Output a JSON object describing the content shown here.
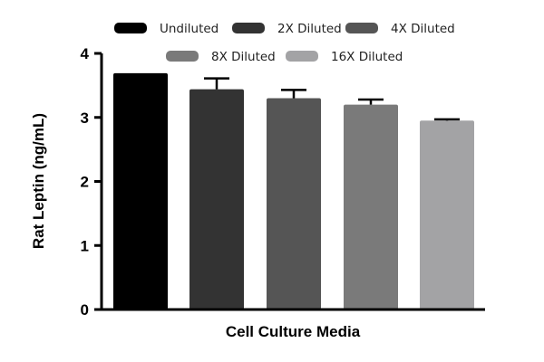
{
  "chart_data": {
    "type": "bar",
    "title": "",
    "xlabel": "Cell Culture Media",
    "ylabel": "Rat  Leptin (ng/mL)",
    "ylim": [
      0,
      4
    ],
    "yticks": [
      "0",
      "1",
      "2",
      "3",
      "4"
    ],
    "grid": false,
    "legend_position": "top",
    "series": [
      {
        "name": "Undiluted",
        "value": 3.69,
        "error": 0,
        "color": "#000000"
      },
      {
        "name": "2X Diluted",
        "value": 3.44,
        "error": 0.17,
        "color": "#333333"
      },
      {
        "name": "4X Diluted",
        "value": 3.3,
        "error": 0.13,
        "color": "#555555"
      },
      {
        "name": "8X Diluted",
        "value": 3.2,
        "error": 0.08,
        "color": "#7a7a7a"
      },
      {
        "name": "16X Diluted",
        "value": 2.95,
        "error": 0.02,
        "color": "#a3a3a5"
      }
    ]
  }
}
